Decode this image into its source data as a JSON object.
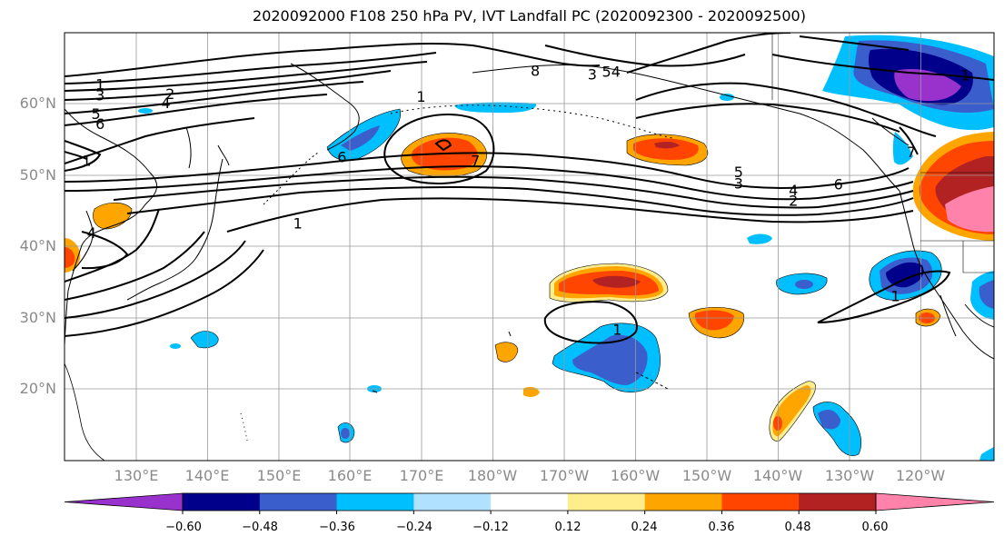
{
  "title": "2020092000 F108 250 hPa PV, IVT Landfall PC (2020092300 - 2020092500)",
  "latitude_labels": [
    "60°N",
    "50°N",
    "40°N",
    "30°N",
    "20°N"
  ],
  "longitude_labels": [
    "130°E",
    "140°E",
    "150°E",
    "160°E",
    "170°E",
    "180°W",
    "170°W",
    "160°W",
    "150°W",
    "140°W",
    "130°W",
    "120°W"
  ],
  "colorbar": {
    "colors": [
      "#9932cc",
      "#00008b",
      "#3a5fcd",
      "#00bfff",
      "#b0e2ff",
      "#ffffff",
      "#ffec8b",
      "#ffa500",
      "#ff4500",
      "#b22222",
      "#ff82ab"
    ],
    "tick_labels": [
      "−0.60",
      "−0.48",
      "−0.36",
      "−0.24",
      "−0.12",
      "0.12",
      "0.24",
      "0.36",
      "0.48",
      "0.60"
    ]
  },
  "contour_labels": [
    {
      "text": "1",
      "lon": 125,
      "lat": 62.6
    },
    {
      "text": "2",
      "lon": 134.8,
      "lat": 61.3
    },
    {
      "text": "3",
      "lon": 125,
      "lat": 61.1
    },
    {
      "text": "4",
      "lon": 134.2,
      "lat": 60.0
    },
    {
      "text": "5",
      "lon": 124.4,
      "lat": 58.5
    },
    {
      "text": "6",
      "lon": 125,
      "lat": 57.1
    },
    {
      "text": "1",
      "lon": 123.1,
      "lat": 51.9
    },
    {
      "text": "4",
      "lon": 123.8,
      "lat": 41.8
    },
    {
      "text": "1",
      "lon": 152.7,
      "lat": 43.1
    },
    {
      "text": "6",
      "lon": 158.9,
      "lat": 52.4
    },
    {
      "text": "1",
      "lon": 170,
      "lat": 60.9
    },
    {
      "text": "7",
      "lon": 177.6,
      "lat": 51.9
    },
    {
      "text": "8",
      "lon": -174,
      "lat": 64.5
    },
    {
      "text": "3",
      "lon": -166,
      "lat": 64.0
    },
    {
      "text": "5",
      "lon": -164,
      "lat": 64.4
    },
    {
      "text": "4",
      "lon": -162.7,
      "lat": 64.4
    },
    {
      "text": "5",
      "lon": -145.5,
      "lat": 50.3
    },
    {
      "text": "3",
      "lon": -145.5,
      "lat": 48.7
    },
    {
      "text": "4",
      "lon": -137.8,
      "lat": 47.8
    },
    {
      "text": "2",
      "lon": -137.8,
      "lat": 46.3
    },
    {
      "text": "6",
      "lon": -131.5,
      "lat": 48.6
    },
    {
      "text": "1",
      "lon": -162.5,
      "lat": 28.2
    },
    {
      "text": "1",
      "lon": -123.5,
      "lat": 32.9
    },
    {
      "text": "7",
      "lon": -121.3,
      "lat": 53.1
    },
    {
      "text": "1",
      "lon": -113.7,
      "lat": 63.9
    }
  ]
}
